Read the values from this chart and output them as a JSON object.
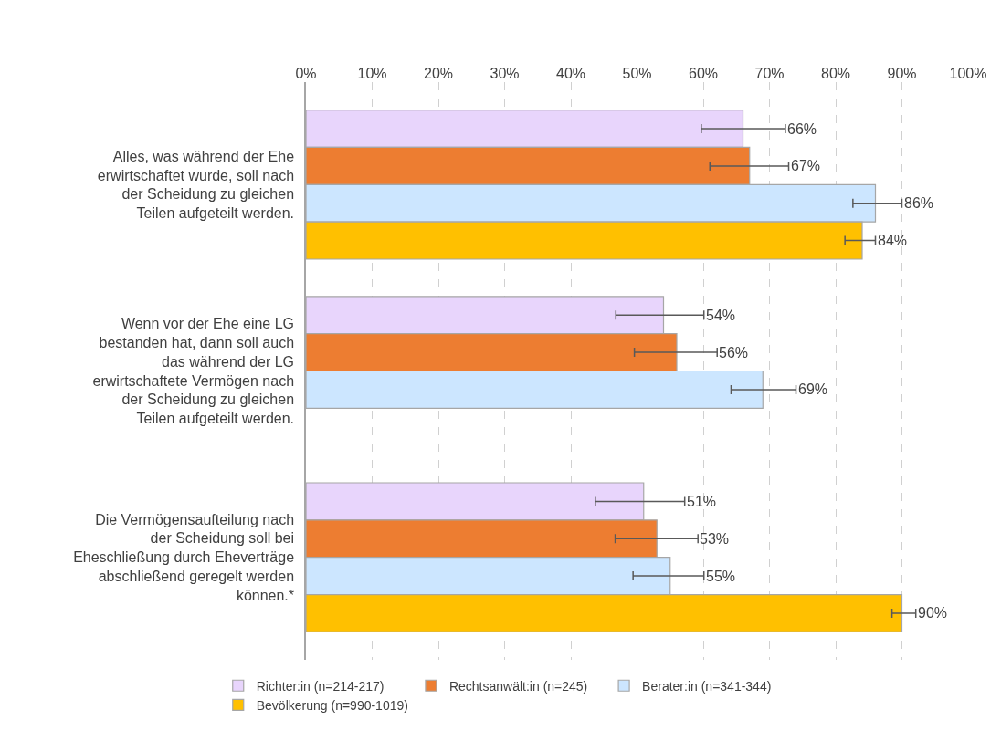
{
  "chart_data": {
    "type": "bar",
    "orientation": "horizontal",
    "categories": [
      "Alles, was während der Ehe erwirtschaftet wurde, soll nach der Scheidung zu gleichen Teilen aufgeteilt werden.",
      "Wenn vor der Ehe eine LG bestanden hat, dann soll auch das während der LG erwirtschaftete Vermögen nach der Scheidung zu gleichen Teilen aufgeteilt werden.",
      "Die Vermögensaufteilung nach der Scheidung soll bei Eheschließung durch Eheverträge abschließend geregelt werden können.*"
    ],
    "series": [
      {
        "name": "Richter:in (n=214-217)",
        "color": "#e8d5fc",
        "values": [
          66,
          54,
          51
        ],
        "errors": [
          [
            59.7,
            72.4
          ],
          [
            46.8,
            60.1
          ],
          [
            43.7,
            57.2
          ]
        ],
        "value_labels": [
          "66%",
          "54%",
          "51%"
        ]
      },
      {
        "name": "Rechtsanwält:in (n=245)",
        "color": "#ed7d31",
        "values": [
          67,
          56,
          53
        ],
        "errors": [
          [
            61.0,
            72.9
          ],
          [
            49.6,
            62.1
          ],
          [
            46.7,
            59.2
          ]
        ],
        "value_labels": [
          "67%",
          "56%",
          "53%"
        ]
      },
      {
        "name": "Berater:in (n=341-344)",
        "color": "#cce6ff",
        "values": [
          86,
          69,
          55
        ],
        "errors": [
          [
            82.6,
            90.0
          ],
          [
            64.2,
            74.0
          ],
          [
            49.4,
            60.1
          ]
        ],
        "value_labels": [
          "86%",
          "69%",
          "55%"
        ]
      },
      {
        "name": "Bevölkerung (n=990-1019)",
        "color": "#ffc000",
        "values": [
          84,
          null,
          90
        ],
        "errors": [
          [
            81.4,
            86.0
          ],
          null,
          [
            88.5,
            92.1
          ]
        ],
        "value_labels": [
          "84%",
          null,
          "90%"
        ]
      }
    ],
    "xlim": [
      0,
      100
    ],
    "xticks": [
      {
        "value": 0,
        "label": "0%"
      },
      {
        "value": 10,
        "label": "10%"
      },
      {
        "value": 20,
        "label": "20%"
      },
      {
        "value": 30,
        "label": "30%"
      },
      {
        "value": 40,
        "label": "40%"
      },
      {
        "value": 50,
        "label": "50%"
      },
      {
        "value": 60,
        "label": "60%"
      },
      {
        "value": 70,
        "label": "70%"
      },
      {
        "value": 80,
        "label": "80%"
      },
      {
        "value": 90,
        "label": "90%"
      },
      {
        "value": 100,
        "label": "100%"
      }
    ],
    "grid": "x",
    "line_style": "dashed",
    "legend": "bottom"
  }
}
